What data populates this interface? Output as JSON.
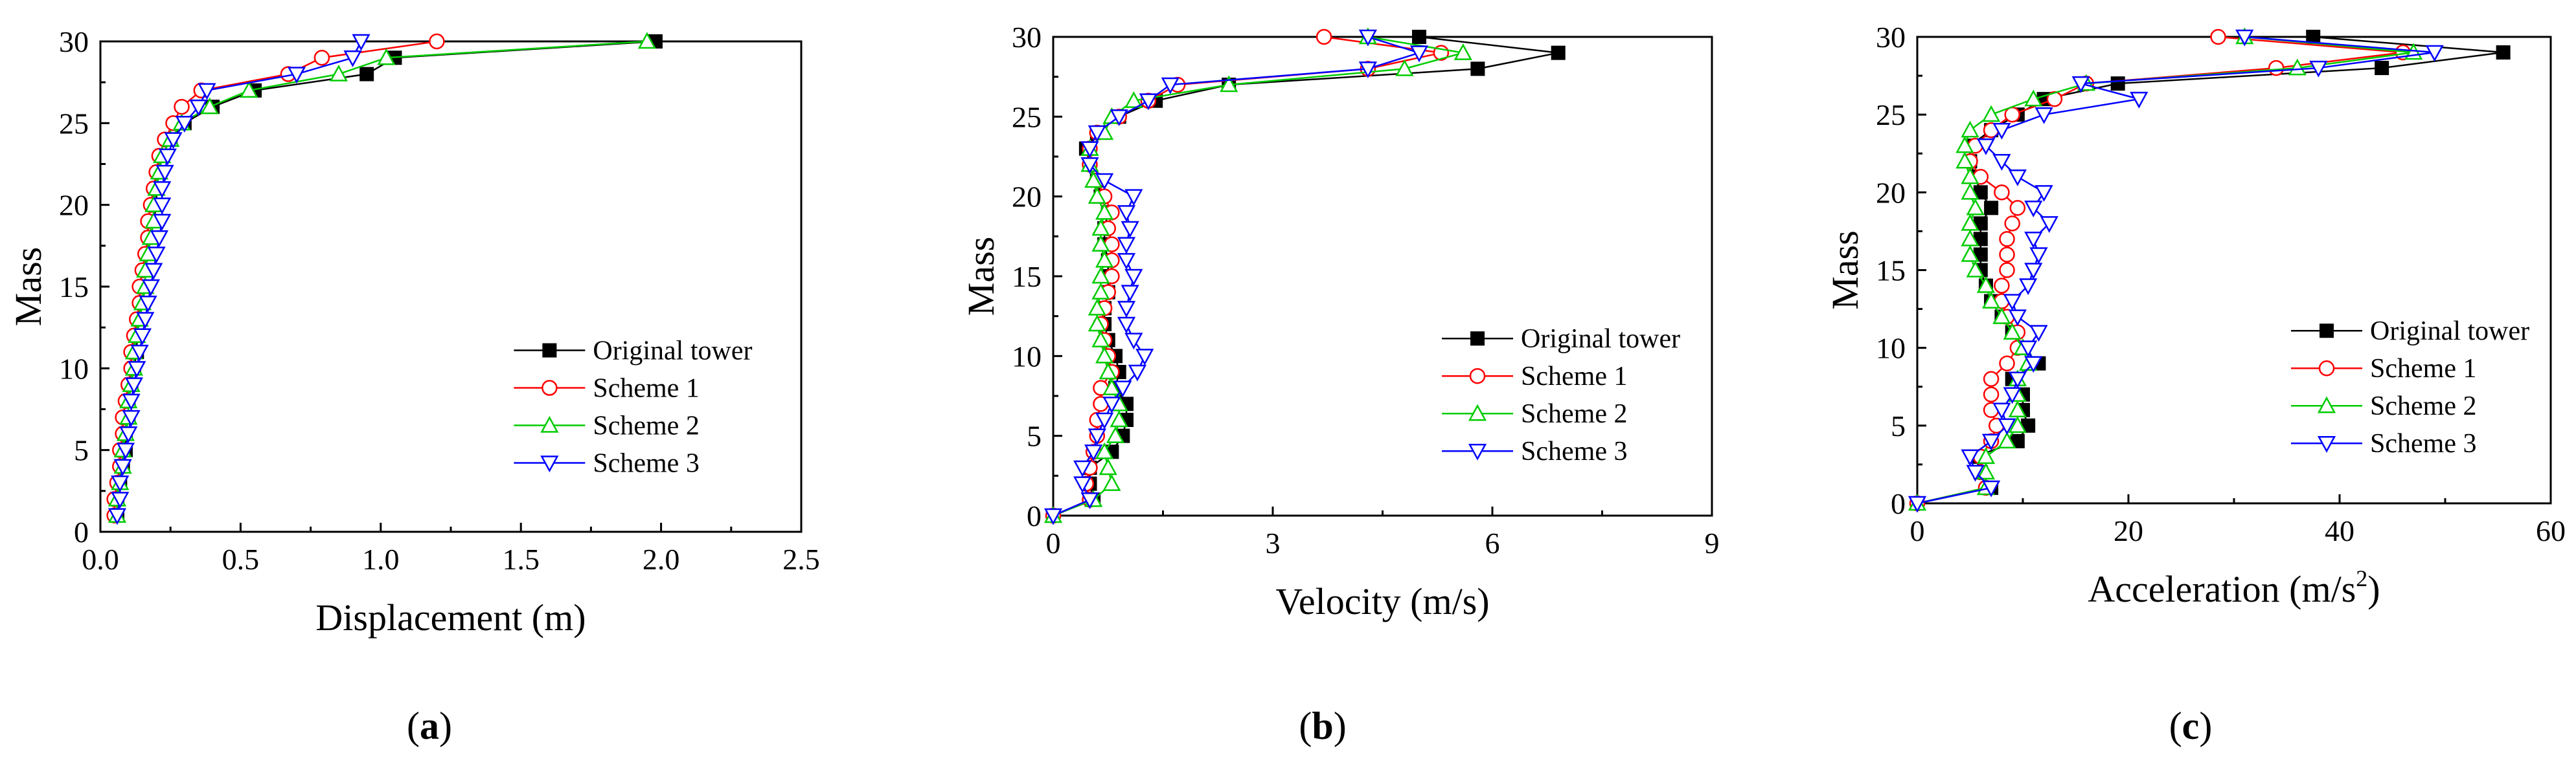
{
  "figure": {
    "panel_labels": [
      "a",
      "b",
      "c"
    ]
  },
  "series_styles": [
    {
      "name": "Original tower",
      "color": "#000000",
      "marker": "square"
    },
    {
      "name": "Scheme 1",
      "color": "#ff0000",
      "marker": "circle"
    },
    {
      "name": "Scheme 2",
      "color": "#00cc00",
      "marker": "triangle-up"
    },
    {
      "name": "Scheme 3",
      "color": "#0000ff",
      "marker": "triangle-down"
    }
  ],
  "chart_data": [
    {
      "type": "line",
      "panel": "a",
      "title": "",
      "xlabel": "Displacement (m)",
      "ylabel": "Mass",
      "xlim": [
        0,
        2.5
      ],
      "ylim": [
        0,
        30
      ],
      "xticks": [
        "0.0",
        "0.5",
        "1.0",
        "1.5",
        "2.0",
        "2.5"
      ],
      "yticks": [
        "0",
        "5",
        "10",
        "15",
        "20",
        "25",
        "30"
      ],
      "legend_position": "bottom-right",
      "y": [
        1,
        2,
        3,
        4,
        5,
        6,
        7,
        8,
        9,
        10,
        11,
        12,
        13,
        14,
        15,
        16,
        17,
        18,
        19,
        20,
        21,
        22,
        23,
        24,
        25,
        26,
        27,
        28,
        29,
        30
      ],
      "series": [
        {
          "name": "Original tower",
          "x": [
            0.06,
            0.06,
            0.07,
            0.08,
            0.09,
            0.09,
            0.1,
            0.1,
            0.11,
            0.12,
            0.13,
            0.13,
            0.14,
            0.15,
            0.16,
            0.16,
            0.17,
            0.18,
            0.19,
            0.2,
            0.2,
            0.21,
            0.22,
            0.25,
            0.3,
            0.4,
            0.55,
            0.95,
            1.05,
            1.98
          ]
        },
        {
          "name": "Scheme 1",
          "x": [
            0.05,
            0.05,
            0.06,
            0.07,
            0.07,
            0.08,
            0.08,
            0.09,
            0.1,
            0.11,
            0.11,
            0.12,
            0.13,
            0.14,
            0.14,
            0.15,
            0.16,
            0.17,
            0.17,
            0.18,
            0.19,
            0.2,
            0.21,
            0.23,
            0.26,
            0.29,
            0.36,
            0.67,
            0.79,
            1.2
          ]
        },
        {
          "name": "Scheme 2",
          "x": [
            0.06,
            0.06,
            0.07,
            0.08,
            0.08,
            0.09,
            0.1,
            0.1,
            0.11,
            0.12,
            0.12,
            0.13,
            0.14,
            0.15,
            0.16,
            0.16,
            0.17,
            0.18,
            0.19,
            0.19,
            0.2,
            0.21,
            0.22,
            0.25,
            0.29,
            0.39,
            0.53,
            0.85,
            1.02,
            1.95
          ]
        },
        {
          "name": "Scheme 3",
          "x": [
            0.06,
            0.07,
            0.07,
            0.08,
            0.09,
            0.1,
            0.11,
            0.11,
            0.12,
            0.13,
            0.14,
            0.15,
            0.16,
            0.17,
            0.18,
            0.19,
            0.2,
            0.21,
            0.22,
            0.22,
            0.22,
            0.23,
            0.24,
            0.26,
            0.3,
            0.35,
            0.38,
            0.7,
            0.9,
            0.93
          ]
        }
      ]
    },
    {
      "type": "line",
      "panel": "b",
      "title": "",
      "xlabel": "Velocity (m/s)",
      "ylabel": "Mass",
      "xlim": [
        0,
        9
      ],
      "ylim": [
        0,
        30
      ],
      "xticks": [
        "0",
        "3",
        "6",
        "9"
      ],
      "yticks": [
        "0",
        "5",
        "10",
        "15",
        "20",
        "25",
        "30"
      ],
      "legend_position": "bottom-right",
      "y": [
        0,
        1,
        2,
        3,
        4,
        5,
        6,
        7,
        8,
        9,
        10,
        11,
        12,
        13,
        14,
        15,
        16,
        17,
        18,
        19,
        20,
        21,
        22,
        23,
        24,
        25,
        26,
        27,
        28,
        29,
        30
      ],
      "series": [
        {
          "name": "Original tower",
          "x": [
            0,
            0.55,
            0.5,
            0.5,
            0.8,
            0.95,
            1.0,
            1.0,
            0.85,
            0.9,
            0.85,
            0.75,
            0.7,
            0.7,
            0.75,
            0.75,
            0.75,
            0.7,
            0.7,
            0.75,
            0.65,
            0.6,
            0.5,
            0.45,
            0.6,
            0.9,
            1.4,
            2.4,
            5.8,
            6.9,
            5.0
          ]
        },
        {
          "name": "Scheme 1",
          "x": [
            0,
            0.5,
            0.45,
            0.5,
            0.55,
            0.6,
            0.6,
            0.65,
            0.65,
            0.8,
            0.75,
            0.7,
            0.65,
            0.7,
            0.75,
            0.8,
            0.8,
            0.8,
            0.75,
            0.8,
            0.7,
            0.6,
            0.5,
            0.5,
            0.6,
            0.9,
            1.3,
            1.7,
            4.3,
            5.3,
            3.7
          ]
        },
        {
          "name": "Scheme 2",
          "x": [
            0,
            0.55,
            0.8,
            0.75,
            0.7,
            0.85,
            0.9,
            0.9,
            0.8,
            0.75,
            0.7,
            0.65,
            0.6,
            0.6,
            0.65,
            0.65,
            0.7,
            0.65,
            0.65,
            0.7,
            0.6,
            0.55,
            0.5,
            0.5,
            0.7,
            0.8,
            1.1,
            2.4,
            4.8,
            5.6,
            4.3
          ]
        },
        {
          "name": "Scheme 3",
          "x": [
            0,
            0.5,
            0.4,
            0.4,
            0.55,
            0.6,
            0.7,
            0.8,
            0.95,
            1.15,
            1.25,
            1.1,
            1.0,
            1.0,
            1.05,
            1.1,
            1.0,
            1.0,
            1.05,
            1.0,
            1.1,
            0.7,
            0.5,
            0.5,
            0.6,
            0.9,
            1.3,
            1.6,
            4.3,
            5.0,
            4.3
          ]
        }
      ]
    },
    {
      "type": "line",
      "panel": "c",
      "title": "",
      "xlabel": "Acceleration (m/s",
      "xlabel_superscript": "2",
      "xlabel_suffix": ")",
      "ylabel": "Mass",
      "xlim": [
        0,
        60
      ],
      "ylim": [
        0,
        30
      ],
      "xticks": [
        "0",
        "20",
        "40",
        "60"
      ],
      "yticks": [
        "0",
        "5",
        "10",
        "15",
        "20",
        "25",
        "30"
      ],
      "legend_position": "bottom-right",
      "y": [
        0,
        1,
        2,
        3,
        4,
        5,
        6,
        7,
        8,
        9,
        10,
        11,
        12,
        13,
        14,
        15,
        16,
        17,
        18,
        19,
        20,
        21,
        22,
        23,
        24,
        25,
        26,
        27,
        28,
        29,
        30
      ],
      "series": [
        {
          "name": "Original tower",
          "x": [
            0,
            7.0,
            6.0,
            5.5,
            9.5,
            10.5,
            10.0,
            10.0,
            9.0,
            11.5,
            10.0,
            9.0,
            8.0,
            7.0,
            6.5,
            6.0,
            6.0,
            6.0,
            6.0,
            7.0,
            6.0,
            5.5,
            5.0,
            5.0,
            7.0,
            9.5,
            12.0,
            19.0,
            44.0,
            55.5,
            37.5
          ]
        },
        {
          "name": "Scheme 1",
          "x": [
            0,
            6.5,
            6.0,
            6.0,
            7.0,
            7.5,
            7.0,
            7.0,
            7.0,
            8.5,
            9.5,
            9.5,
            8.5,
            8.0,
            8.0,
            8.5,
            8.5,
            8.5,
            9.0,
            9.5,
            8.0,
            6.0,
            5.0,
            5.5,
            7.0,
            9.0,
            13.0,
            16.0,
            34.0,
            46.0,
            28.5
          ]
        },
        {
          "name": "Scheme 2",
          "x": [
            0,
            6.5,
            6.5,
            6.5,
            8.5,
            9.5,
            9.5,
            9.5,
            9.5,
            10.5,
            10.0,
            9.0,
            8.0,
            7.0,
            6.5,
            5.5,
            5.0,
            5.0,
            5.0,
            5.5,
            5.0,
            5.0,
            4.5,
            4.5,
            5.0,
            7.0,
            11.0,
            16.0,
            36.0,
            47.0,
            31.0
          ]
        },
        {
          "name": "Scheme 3",
          "x": [
            0,
            7.0,
            5.5,
            5.0,
            7.0,
            8.5,
            8.0,
            9.0,
            9.5,
            11.0,
            10.5,
            11.5,
            9.5,
            9.0,
            10.5,
            11.0,
            11.5,
            11.0,
            12.5,
            11.0,
            12.0,
            9.5,
            8.0,
            6.5,
            8.0,
            12.0,
            21.0,
            15.5,
            38.0,
            49.0,
            31.0
          ]
        }
      ]
    }
  ]
}
